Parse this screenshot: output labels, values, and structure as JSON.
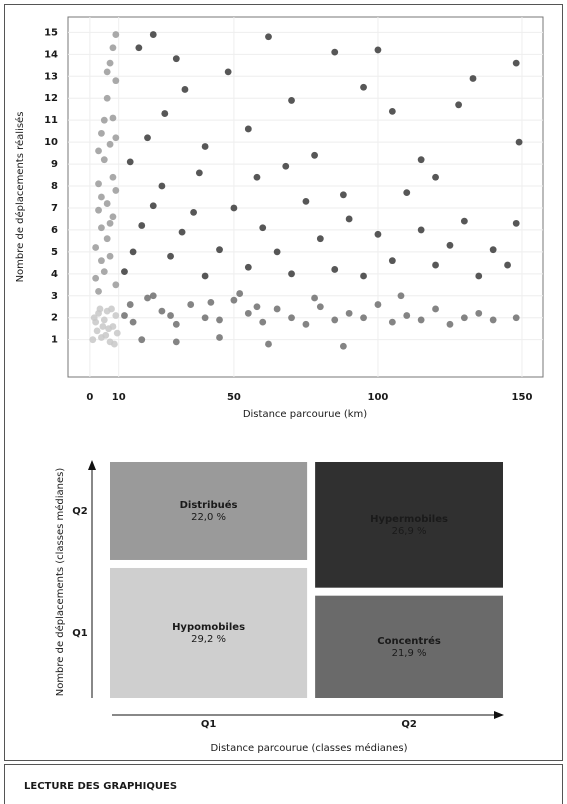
{
  "charts": [
    {
      "type": "scatter",
      "xlabel": "Distance parcourue (km)",
      "ylabel": "Nombre de déplacements réalisés",
      "xlim": [
        -7.6,
        157.3
      ],
      "ylim": [
        -0.7,
        15.7
      ],
      "xticks": [
        0,
        10,
        50,
        100,
        150
      ],
      "yticks": [
        1,
        2,
        3,
        4,
        5,
        6,
        7,
        8,
        9,
        10,
        11,
        12,
        13,
        14,
        15
      ],
      "grid": true,
      "series": [
        {
          "color": "#c8c8c8",
          "x": [
            1,
            2,
            3,
            4,
            5,
            6,
            7,
            8,
            9,
            2.5,
            5.5,
            7.5,
            1.5,
            4.5,
            8.5,
            6.5,
            3.5,
            9.5
          ],
          "values": [
            1,
            1.8,
            2.2,
            1.1,
            1.9,
            2.3,
            0.9,
            1.6,
            2.1,
            1.4,
            1.2,
            2.4,
            2.0,
            1.6,
            0.8,
            1.5,
            2.4,
            1.3
          ]
        },
        {
          "color": "#9a9a9a",
          "x": [
            3,
            5,
            7,
            2,
            4,
            8,
            6,
            3,
            9,
            5,
            7,
            4,
            8,
            6,
            9,
            7,
            8,
            9,
            2,
            6,
            4,
            8,
            3,
            5,
            9,
            6,
            4,
            7,
            3,
            9
          ],
          "values": [
            3.2,
            4.1,
            4.8,
            5.2,
            6.1,
            6.6,
            7.2,
            8.1,
            7.8,
            9.2,
            9.9,
            10.4,
            11.1,
            12.0,
            12.8,
            13.6,
            14.3,
            14.9,
            3.8,
            5.6,
            7.5,
            8.4,
            9.6,
            11.0,
            10.2,
            13.2,
            4.6,
            6.3,
            6.9,
            3.5
          ]
        },
        {
          "color": "#6e6e6e",
          "x": [
            12,
            15,
            20,
            25,
            30,
            35,
            40,
            45,
            50,
            55,
            60,
            65,
            70,
            75,
            80,
            85,
            90,
            95,
            100,
            105,
            110,
            115,
            120,
            125,
            130,
            140,
            148,
            18,
            30,
            45,
            62,
            88,
            22,
            52,
            78,
            108,
            135,
            14,
            28,
            42,
            58
          ],
          "values": [
            2.1,
            1.8,
            2.9,
            2.3,
            1.7,
            2.6,
            2.0,
            1.9,
            2.8,
            2.2,
            1.8,
            2.4,
            2.0,
            1.7,
            2.5,
            1.9,
            2.2,
            2.0,
            2.6,
            1.8,
            2.1,
            1.9,
            2.4,
            1.7,
            2.0,
            1.9,
            2.0,
            1.0,
            0.9,
            1.1,
            0.8,
            0.7,
            3.0,
            3.1,
            2.9,
            3.0,
            2.2,
            2.6,
            2.1,
            2.7,
            2.5
          ]
        },
        {
          "color": "#3a3a3a",
          "x": [
            12,
            15,
            18,
            22,
            25,
            28,
            32,
            36,
            40,
            45,
            50,
            55,
            60,
            65,
            70,
            75,
            80,
            85,
            90,
            95,
            100,
            105,
            110,
            115,
            120,
            125,
            130,
            135,
            140,
            145,
            148,
            14,
            20,
            26,
            33,
            40,
            48,
            55,
            62,
            70,
            78,
            85,
            95,
            100,
            105,
            115,
            128,
            133,
            148,
            149,
            17,
            22,
            30,
            38,
            58,
            68,
            88,
            120
          ],
          "values": [
            4.1,
            5.0,
            6.2,
            7.1,
            8.0,
            4.8,
            5.9,
            6.8,
            3.9,
            5.1,
            7.0,
            4.3,
            6.1,
            5.0,
            4.0,
            7.3,
            5.6,
            4.2,
            6.5,
            3.9,
            5.8,
            4.6,
            7.7,
            6.0,
            4.4,
            5.3,
            6.4,
            3.9,
            5.1,
            4.4,
            6.3,
            9.1,
            10.2,
            11.3,
            12.4,
            9.8,
            13.2,
            10.6,
            14.8,
            11.9,
            9.4,
            14.1,
            12.5,
            14.2,
            11.4,
            9.2,
            11.7,
            12.9,
            13.6,
            10.0,
            14.3,
            14.9,
            13.8,
            8.6,
            8.4,
            8.9,
            7.6,
            8.4
          ]
        }
      ]
    },
    {
      "type": "mosaic",
      "xlabel": "Distance parcourue (classes médianes)",
      "ylabel": "Nombre de déplacements (classes médianes)",
      "categories": [
        "Q1",
        "Q2"
      ],
      "ycategories": [
        "Q1",
        "Q2"
      ],
      "labels": [
        [
          "Hypomobiles",
          "Distribués"
        ],
        [
          "Concentrés",
          "Hypermobiles"
        ]
      ],
      "values": [
        [
          29.2,
          22.0
        ],
        [
          21.9,
          26.9
        ]
      ],
      "value_labels": [
        [
          "29,2 %",
          "22,0 %"
        ],
        [
          "21,9 %",
          "26,9 %"
        ]
      ],
      "colors": [
        [
          "#cfcfcf",
          "#9a9a9a"
        ],
        [
          "#6a6a6a",
          "#303030"
        ]
      ]
    }
  ],
  "footer": {
    "title": "LECTURE DES GRAPHIQUES"
  }
}
